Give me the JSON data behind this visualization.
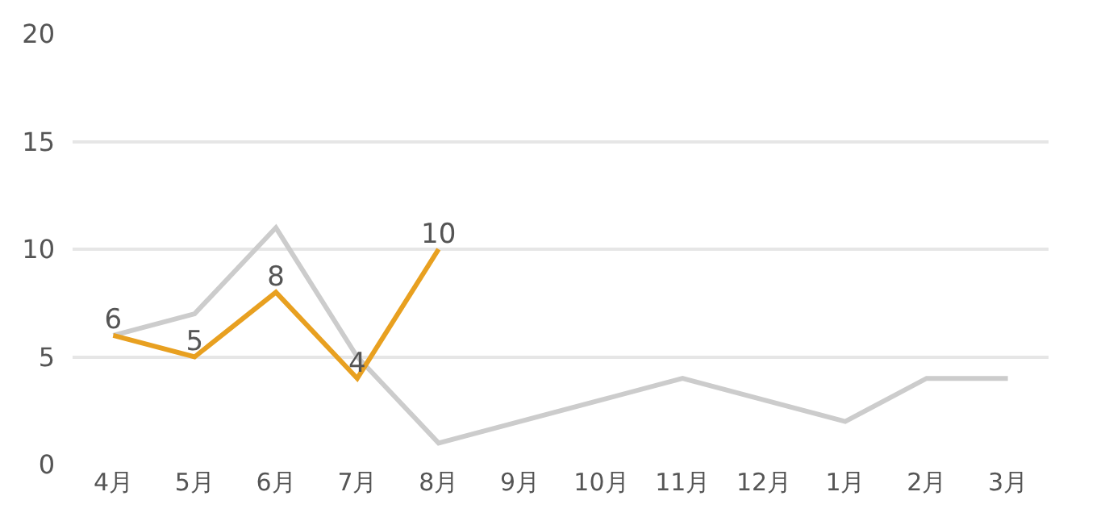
{
  "chart_data": {
    "type": "line",
    "categories": [
      "4月",
      "5月",
      "6月",
      "7月",
      "8月",
      "9月",
      "10月",
      "11月",
      "12月",
      "1月",
      "2月",
      "3月"
    ],
    "series": [
      {
        "color": "#cccccc",
        "values": [
          6,
          7,
          11,
          5,
          1,
          2,
          3,
          4,
          3,
          2,
          4,
          4
        ]
      },
      {
        "color": "#e8a020",
        "values": [
          6,
          5,
          8,
          4,
          10,
          null,
          null,
          null,
          null,
          null,
          null,
          null
        ],
        "data_labels": true
      }
    ],
    "ylim": [
      0,
      20
    ],
    "yticks": [
      0,
      5,
      10,
      15,
      20
    ],
    "grid": "y",
    "legend": false,
    "marker": "none",
    "line_style": "solid"
  }
}
